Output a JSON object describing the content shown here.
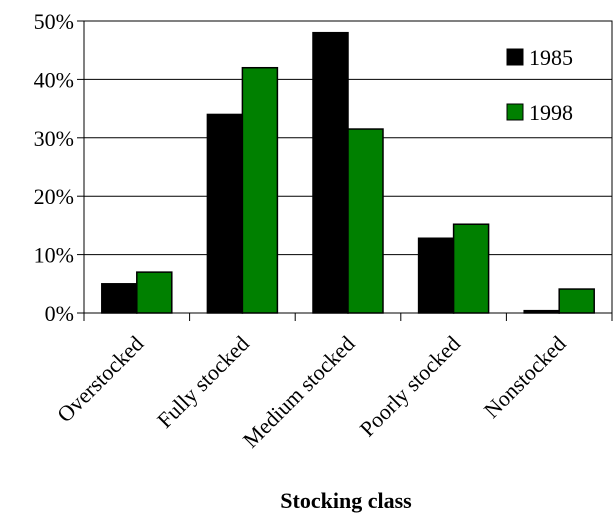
{
  "chart_data": {
    "type": "bar",
    "categories": [
      "Overstocked",
      "Fully stocked",
      "Medium stocked",
      "Poorly stocked",
      "Nonstocked"
    ],
    "series": [
      {
        "name": "1985",
        "values": [
          5,
          34,
          48,
          12.8,
          0.4
        ],
        "color": "#000000"
      },
      {
        "name": "1998",
        "values": [
          7,
          42,
          31.5,
          15.2,
          4.1
        ],
        "color": "#008000"
      }
    ],
    "xlabel": "Stocking class",
    "ylabel": "",
    "ylim": [
      0,
      50
    ],
    "yticks": [
      "0%",
      "10%",
      "20%",
      "30%",
      "40%",
      "50%"
    ],
    "grid": true,
    "legend": "top-right"
  }
}
